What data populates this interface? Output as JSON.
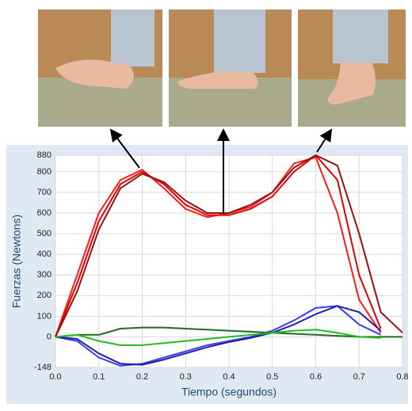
{
  "chart_data": {
    "type": "line",
    "x_label": "Tiempo (segundos)",
    "y_label": "Fuerzas (Newtons)",
    "x": [
      0,
      0.05,
      0.1,
      0.15,
      0.2,
      0.25,
      0.3,
      0.35,
      0.4,
      0.45,
      0.5,
      0.55,
      0.6,
      0.65,
      0.7,
      0.75,
      0.8
    ],
    "series": [
      {
        "color": "#ff1a1a",
        "values": [
          0,
          300,
          600,
          760,
          810,
          720,
          620,
          580,
          600,
          630,
          700,
          840,
          870,
          600,
          180,
          20,
          null
        ]
      },
      {
        "color": "#e00000",
        "values": [
          0,
          260,
          560,
          740,
          800,
          740,
          640,
          590,
          590,
          620,
          680,
          800,
          880,
          760,
          300,
          40,
          null
        ]
      },
      {
        "color": "#9a1010",
        "values": [
          0,
          220,
          520,
          720,
          790,
          750,
          660,
          600,
          600,
          640,
          700,
          820,
          880,
          830,
          500,
          120,
          20
        ]
      },
      {
        "color": "#3a3aff",
        "values": [
          0,
          -20,
          -100,
          -140,
          -130,
          -100,
          -70,
          -40,
          -20,
          0,
          30,
          80,
          140,
          150,
          60,
          10,
          null
        ]
      },
      {
        "color": "#2020a0",
        "values": [
          0,
          -10,
          -80,
          -130,
          -135,
          -110,
          -80,
          -50,
          -25,
          -5,
          20,
          60,
          110,
          150,
          120,
          30,
          null
        ]
      },
      {
        "color": "#1f6b1f",
        "values": [
          0,
          10,
          10,
          40,
          45,
          45,
          40,
          35,
          30,
          25,
          20,
          15,
          10,
          5,
          0,
          0,
          0
        ]
      },
      {
        "color": "#22bb22",
        "values": [
          0,
          10,
          -20,
          -40,
          -40,
          -30,
          -20,
          -10,
          0,
          10,
          20,
          30,
          35,
          20,
          0,
          -5,
          null
        ]
      }
    ],
    "xlim": [
      0,
      0.8
    ],
    "xticks": [
      {
        "value": 0,
        "label": "0.0"
      },
      0.1,
      0.2,
      0.3,
      0.4,
      0.5,
      0.6,
      0.7,
      0.8
    ],
    "ylim": [
      -148,
      880
    ],
    "yticks": [
      -148,
      0,
      100,
      200,
      300,
      400,
      500,
      600,
      700,
      800,
      880
    ],
    "grid": true
  }
}
